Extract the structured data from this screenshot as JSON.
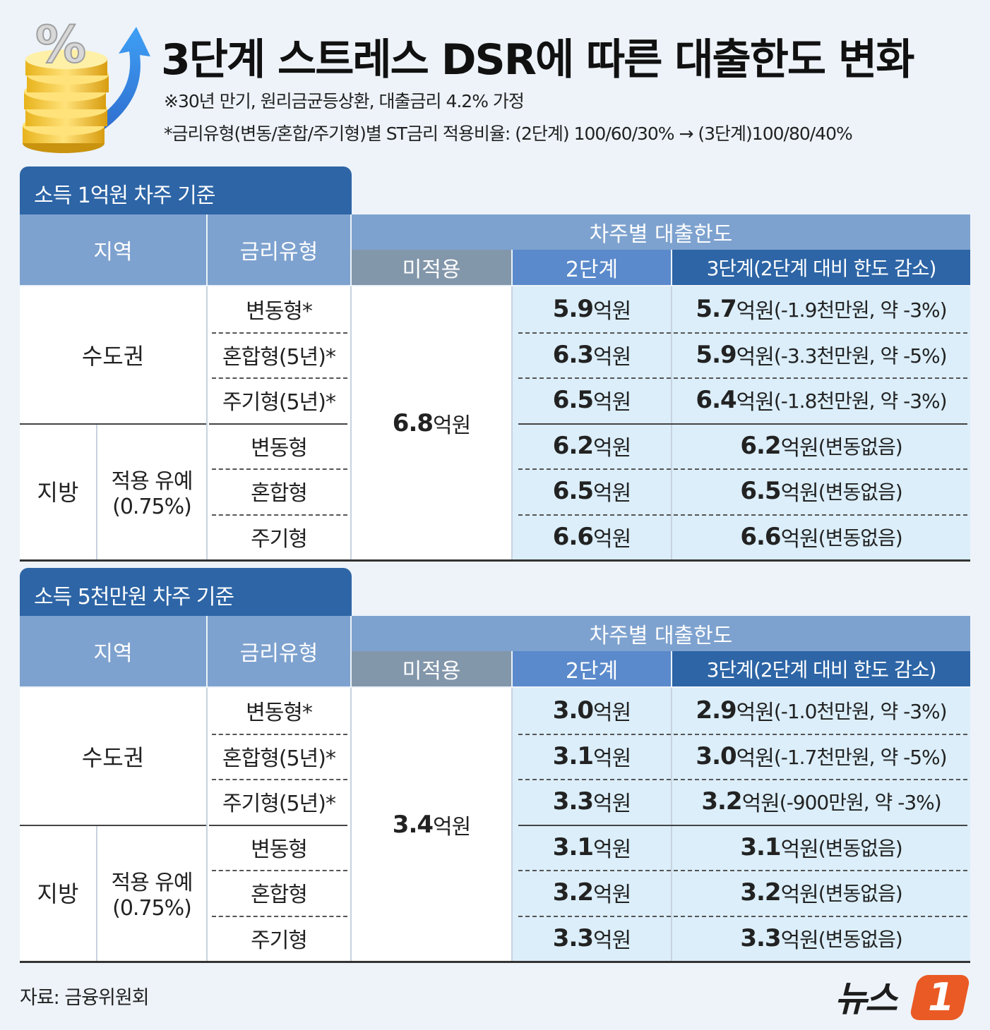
{
  "title": "3단계 스트레스 DSR에 따른 대출한도 변화",
  "subtitle1": "※30년 만기, 원리금균등상환, 대출금리 4.2% 가정",
  "subtitle2": "*금리유형(변동/혼합/주기형)별 ST금리 적용비율: (2단계) 100/60/30% → (3단계)100/80/40%",
  "headers": {
    "region": "지역",
    "rate_type": "금리유형",
    "limit": "차주별 대출한도",
    "not_applied": "미적용",
    "stage2": "2단계",
    "stage3": "3단계(2단계 대비 한도 감소)"
  },
  "regions": {
    "capital": "수도권",
    "local": "지방",
    "local_sub": "적용 유예",
    "local_sub2": "(0.75%)"
  },
  "rate_types": [
    "변동형*",
    "혼합형(5년)*",
    "주기형(5년)*",
    "변동형",
    "혼합형",
    "주기형"
  ],
  "sections": [
    {
      "tab": "소득 1억원 차주 기준",
      "not_applied_num": "6.8",
      "not_applied_unit": "억원",
      "rows": [
        {
          "s2_num": "5.9",
          "s3_num": "5.7",
          "s3_note": "(-1.9천만원, 약 -3%)"
        },
        {
          "s2_num": "6.3",
          "s3_num": "5.9",
          "s3_note": "(-3.3천만원, 약 -5%)"
        },
        {
          "s2_num": "6.5",
          "s3_num": "6.4",
          "s3_note": "(-1.8천만원, 약 -3%)"
        },
        {
          "s2_num": "6.2",
          "s3_num": "6.2",
          "s3_note": "(변동없음)"
        },
        {
          "s2_num": "6.5",
          "s3_num": "6.5",
          "s3_note": "(변동없음)"
        },
        {
          "s2_num": "6.6",
          "s3_num": "6.6",
          "s3_note": "(변동없음)"
        }
      ]
    },
    {
      "tab": "소득 5천만원 차주 기준",
      "not_applied_num": "3.4",
      "not_applied_unit": "억원",
      "rows": [
        {
          "s2_num": "3.0",
          "s3_num": "2.9",
          "s3_note": "(-1.0천만원, 약 -3%)"
        },
        {
          "s2_num": "3.1",
          "s3_num": "3.0",
          "s3_note": "(-1.7천만원, 약 -5%)"
        },
        {
          "s2_num": "3.3",
          "s3_num": "3.2",
          "s3_note": "(-900만원, 약 -3%)"
        },
        {
          "s2_num": "3.1",
          "s3_num": "3.1",
          "s3_note": "(변동없음)"
        },
        {
          "s2_num": "3.2",
          "s3_num": "3.2",
          "s3_note": "(변동없음)"
        },
        {
          "s2_num": "3.3",
          "s3_num": "3.3",
          "s3_note": "(변동없음)"
        }
      ]
    }
  ],
  "unit": "억원",
  "source": "자료: 금융위원회",
  "logo": {
    "text": "뉴스",
    "mark": "1"
  },
  "colors": {
    "tab": "#2d65a6",
    "header": "#7ea2cf",
    "not_applied_header": "#8397ab",
    "stage2_header": "#5a8acb",
    "stage3_header": "#2d65a6",
    "value_bg": "#dbeefa",
    "logo": "#ea5a24"
  }
}
